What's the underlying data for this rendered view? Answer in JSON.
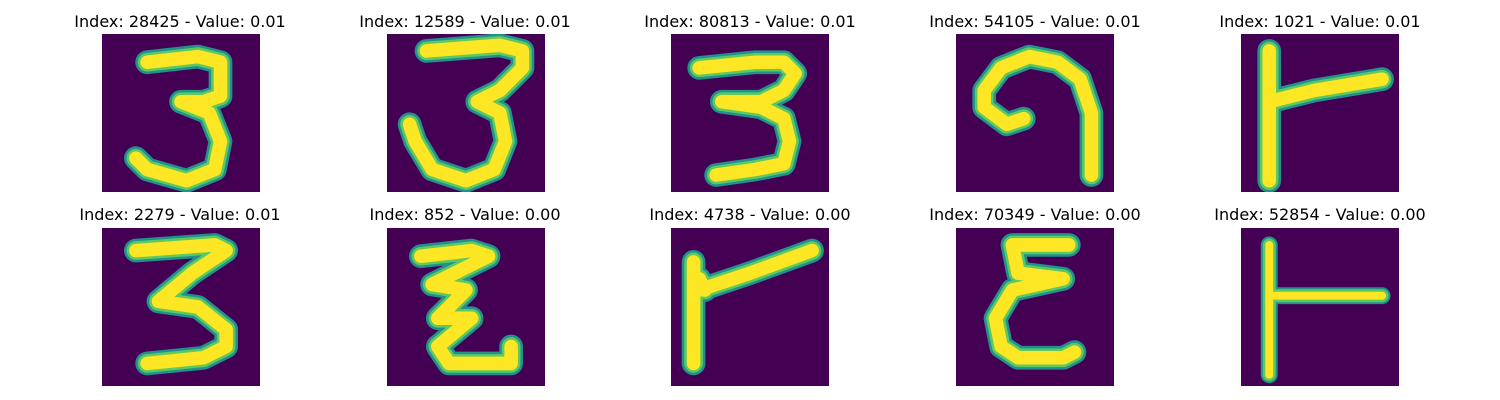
{
  "colors": {
    "background": "#440154",
    "stroke_core": "#fde725",
    "stroke_edge": "#21918c",
    "stroke_mid": "#5ec962"
  },
  "panels": [
    {
      "title": "Index: 28425 - Value: 0.01",
      "glyph": "3-a"
    },
    {
      "title": "Index: 12589 - Value: 0.01",
      "glyph": "3-b"
    },
    {
      "title": "Index: 80813 - Value: 0.01",
      "glyph": "3-c"
    },
    {
      "title": "Index: 54105 - Value: 0.01",
      "glyph": "hook"
    },
    {
      "title": "Index: 1021 - Value: 0.01",
      "glyph": "t-sideways"
    },
    {
      "title": "Index: 2279 - Value: 0.01",
      "glyph": "3-d"
    },
    {
      "title": "Index: 852 - Value: 0.00",
      "glyph": "z-zigzag"
    },
    {
      "title": "Index: 4738 - Value: 0.00",
      "glyph": "flag"
    },
    {
      "title": "Index: 70349 - Value: 0.00",
      "glyph": "epsilon"
    },
    {
      "title": "Index: 52854 - Value: 0.00",
      "glyph": "t-sideways-thin"
    }
  ]
}
